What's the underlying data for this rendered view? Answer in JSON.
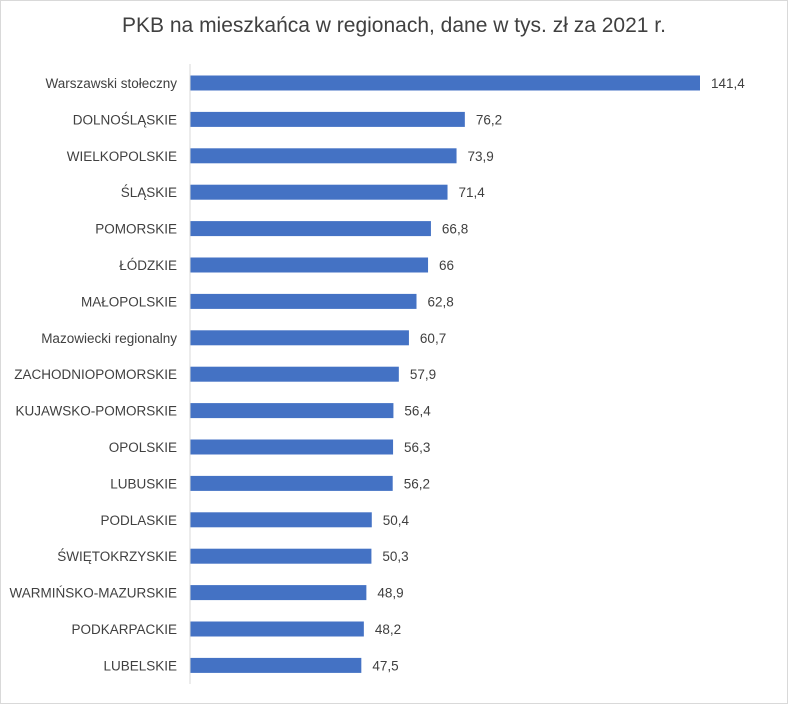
{
  "chart_data": {
    "type": "bar",
    "orientation": "horizontal",
    "title": "PKB na mieszkańca w regionach, dane w tys. zł za 2021 r.",
    "categories": [
      "Warszawski stołeczny",
      "DOLNOŚLĄSKIE",
      "WIELKOPOLSKIE",
      "ŚLĄSKIE",
      "POMORSKIE",
      "ŁÓDZKIE",
      "MAŁOPOLSKIE",
      "Mazowiecki regionalny",
      "ZACHODNIOPOMORSKIE",
      "KUJAWSKO-POMORSKIE",
      "OPOLSKIE",
      "LUBUSKIE",
      "PODLASKIE",
      "ŚWIĘTOKRZYSKIE",
      "WARMIŃSKO-MAZURSKIE",
      "PODKARPACKIE",
      "LUBELSKIE"
    ],
    "values": [
      141.4,
      76.2,
      73.9,
      71.4,
      66.8,
      66,
      62.8,
      60.7,
      57.9,
      56.4,
      56.3,
      56.2,
      50.4,
      50.3,
      48.9,
      48.2,
      47.5
    ],
    "value_labels": [
      "141,4",
      "76,2",
      "73,9",
      "71,4",
      "66,8",
      "66",
      "62,8",
      "60,7",
      "57,9",
      "56,4",
      "56,3",
      "56,2",
      "50,4",
      "50,3",
      "48,9",
      "48,2",
      "47,5"
    ],
    "xlim": [
      0,
      141.4
    ],
    "grid": false,
    "legend": "none",
    "bar_color": "#4472c4",
    "axis_color": "#d9d9d9",
    "text_color": "#404040"
  }
}
